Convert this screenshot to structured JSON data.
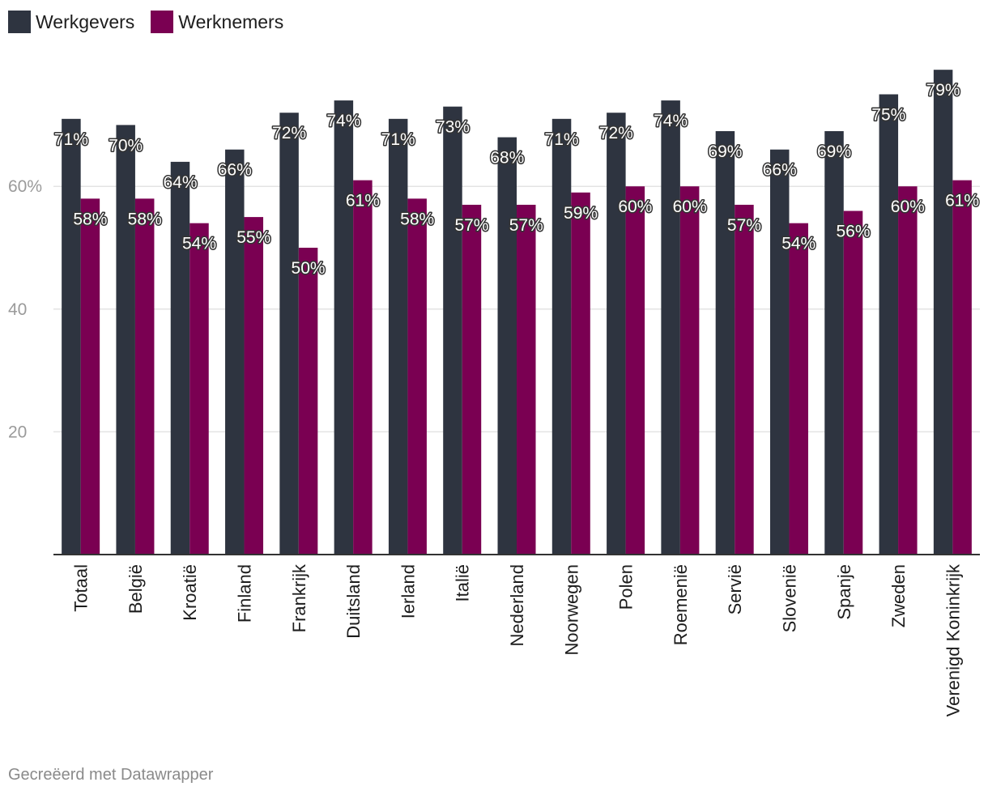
{
  "chart_data": {
    "type": "bar",
    "title": "",
    "xlabel": "",
    "ylabel": "",
    "ylim": [
      0,
      80
    ],
    "yticks": [
      {
        "value": 20,
        "label": "20"
      },
      {
        "value": 40,
        "label": "40"
      },
      {
        "value": 60,
        "label": "60%"
      }
    ],
    "categories": [
      "Totaal",
      "België",
      "Kroatië",
      "Finland",
      "Frankrijk",
      "Duitsland",
      "Ierland",
      "Italië",
      "Nederland",
      "Noorwegen",
      "Polen",
      "Roemenië",
      "Servië",
      "Slovenië",
      "Spanje",
      "Zweden",
      "Verenigd Koninkrijk"
    ],
    "series": [
      {
        "name": "Werkgevers",
        "color": "#2e3440",
        "values": [
          71,
          70,
          64,
          66,
          72,
          74,
          71,
          73,
          68,
          71,
          72,
          74,
          69,
          66,
          69,
          75,
          79
        ]
      },
      {
        "name": "Werknemers",
        "color": "#7a0052",
        "values": [
          58,
          58,
          54,
          55,
          50,
          61,
          58,
          57,
          57,
          59,
          60,
          60,
          57,
          54,
          56,
          60,
          61
        ]
      }
    ],
    "value_suffix": "%",
    "legend_position": "top-left",
    "grid": true
  },
  "footer": {
    "credit": "Gecreëerd met Datawrapper"
  }
}
